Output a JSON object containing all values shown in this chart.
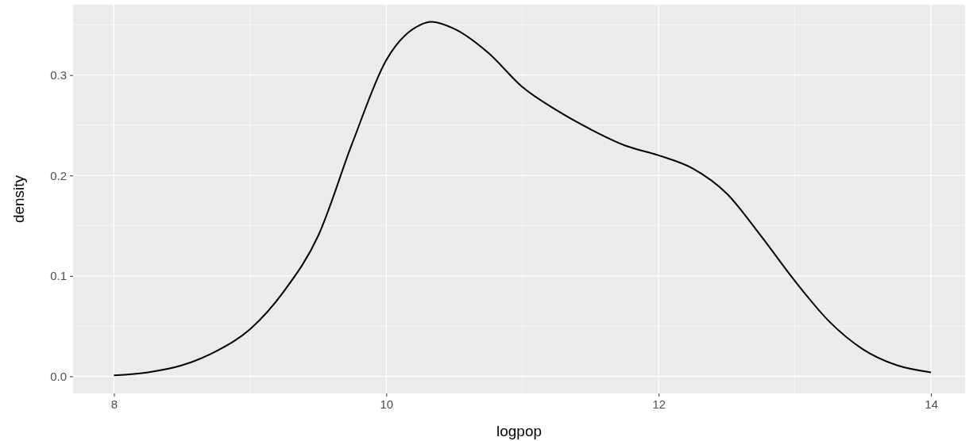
{
  "chart_data": {
    "type": "line",
    "xlabel": "logpop",
    "ylabel": "density",
    "x": [
      8,
      8.25,
      8.5,
      8.75,
      9,
      9.25,
      9.5,
      9.75,
      10,
      10.25,
      10.33,
      10.5,
      10.75,
      11,
      11.25,
      11.5,
      11.75,
      12,
      12.25,
      12.5,
      12.75,
      13,
      13.25,
      13.5,
      13.75,
      14
    ],
    "series": [
      {
        "color": "#000000",
        "values": [
          0.001,
          0.004,
          0.011,
          0.025,
          0.047,
          0.085,
          0.14,
          0.232,
          0.315,
          0.35,
          0.353,
          0.346,
          0.322,
          0.288,
          0.265,
          0.246,
          0.23,
          0.22,
          0.207,
          0.182,
          0.14,
          0.095,
          0.055,
          0.027,
          0.011,
          0.004
        ]
      }
    ],
    "xlim": [
      7.7,
      14.25
    ],
    "ylim": [
      -0.017,
      0.37
    ],
    "xticks": [
      8,
      10,
      12,
      14
    ],
    "yticks": [
      {
        "value": 0,
        "label": "0.0"
      },
      0.1,
      0.2,
      0.3
    ],
    "grid": true,
    "marker": "none",
    "line_style": "solid"
  }
}
